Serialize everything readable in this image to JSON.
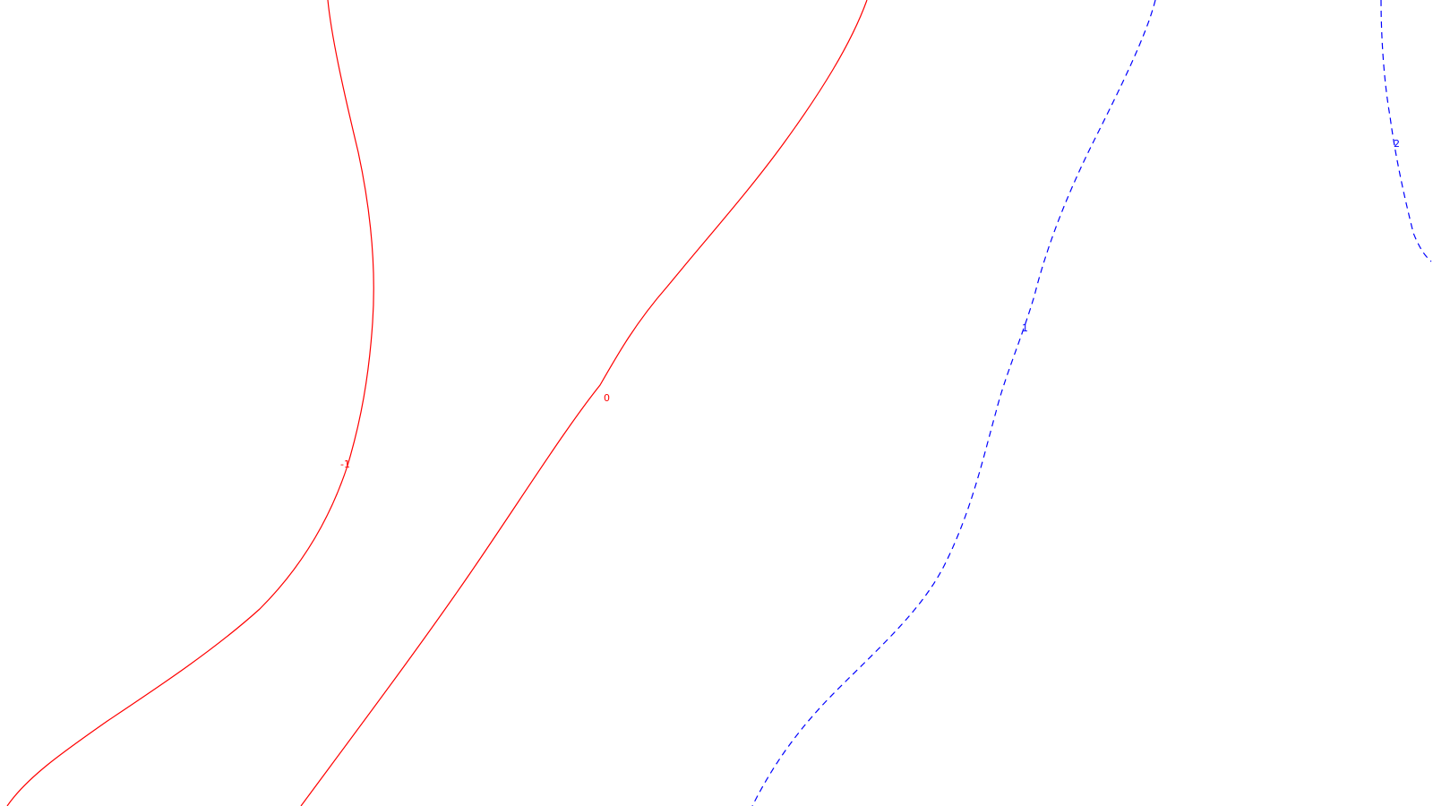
{
  "map": {
    "background_color": "#ffffff",
    "contours": [
      {
        "id": "contour-minus-1",
        "label": "-1",
        "color": "#ff0000",
        "style": "solid"
      },
      {
        "id": "contour-0",
        "label": "0",
        "color": "#ff0000",
        "style": "solid"
      },
      {
        "id": "contour-1",
        "label": "1",
        "color": "#0000ff",
        "style": "dashed"
      },
      {
        "id": "contour-2",
        "label": "2",
        "color": "#0000ff",
        "style": "dashed"
      }
    ]
  }
}
